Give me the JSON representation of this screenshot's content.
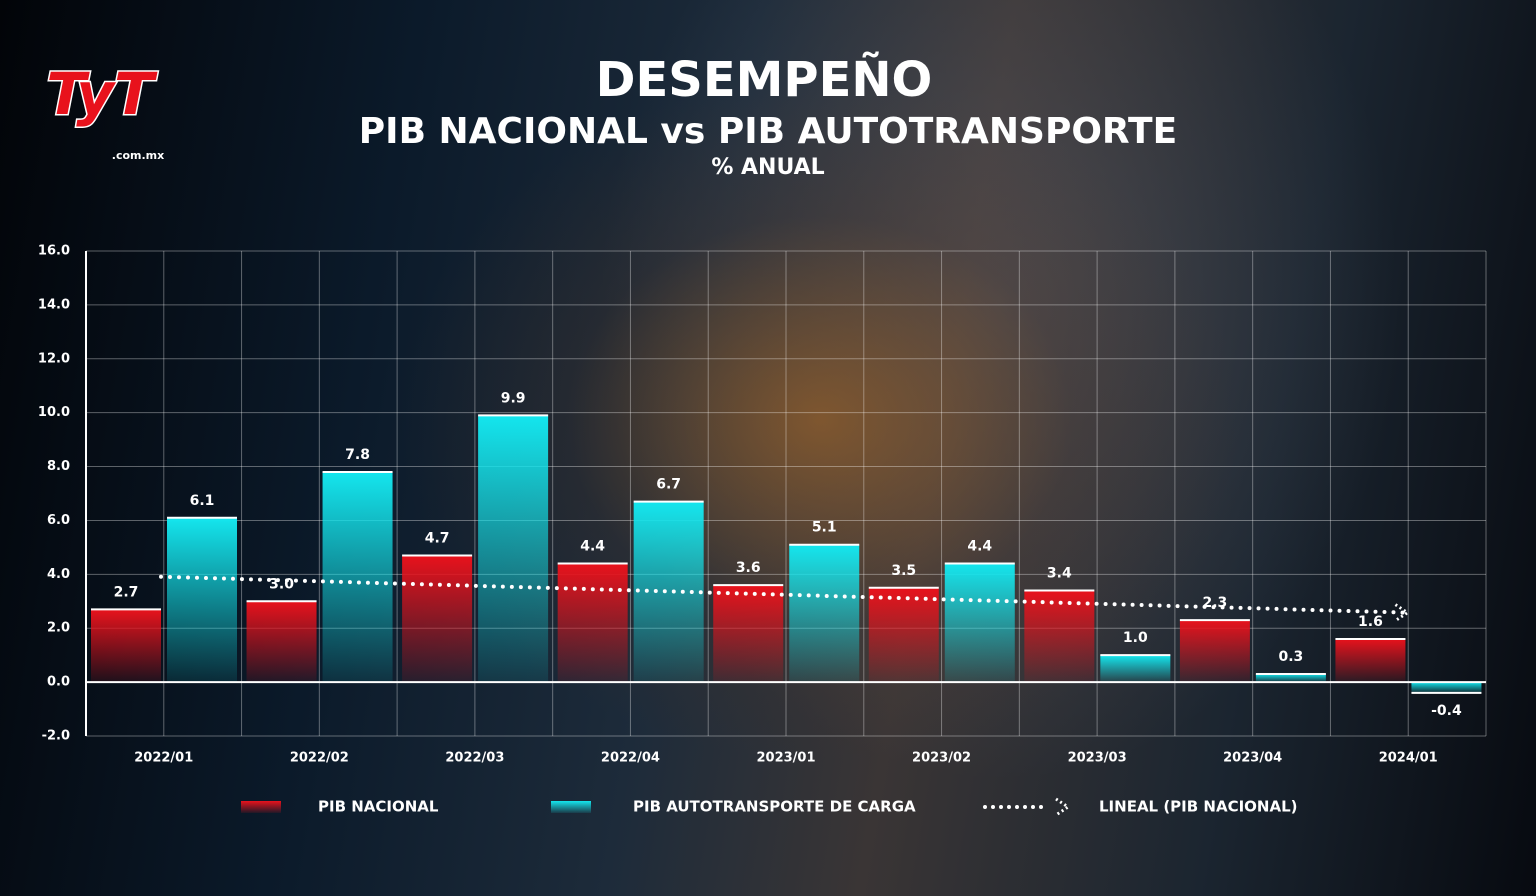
{
  "logo": {
    "text": "TyT",
    "domain": ".com.mx"
  },
  "chart_data": {
    "type": "bar",
    "title": "DESEMPEÑO",
    "subtitle": "PIB NACIONAL vs PIB AUTOTRANSPORTE",
    "y_label": "% ANUAL",
    "categories": [
      "2022/01",
      "2022/02",
      "2022/03",
      "2022/04",
      "2023/01",
      "2023/02",
      "2023/03",
      "2023/04",
      "2024/01"
    ],
    "series": [
      {
        "name": "PIB NACIONAL",
        "color": "#e8121c",
        "values": [
          2.7,
          3.0,
          4.7,
          4.4,
          3.6,
          3.5,
          3.4,
          2.3,
          1.6
        ],
        "value_labels": [
          "2.7",
          "3.0",
          "4.7",
          "4.4",
          "3.6",
          "3.5",
          "3.4",
          "2.3",
          "1.6"
        ],
        "trendline": {
          "name": "LINEAL (PIB NACIONAL)",
          "type": "linear",
          "color": "#ffffff"
        }
      },
      {
        "name": "PIB AUTOTRANSPORTE DE CARGA",
        "color": "#14e6ee",
        "values": [
          6.1,
          7.8,
          9.9,
          6.7,
          5.1,
          4.4,
          1.0,
          0.3,
          -0.4
        ],
        "value_labels": [
          "6.1",
          "7.8",
          "9.9",
          "6.7",
          "5.1",
          "4.4",
          "1.0",
          "0.3",
          "-0.4"
        ]
      }
    ],
    "ylim": [
      -2,
      16
    ],
    "yticks": [
      {
        "value": -2,
        "label": "-2.0"
      },
      {
        "value": 0,
        "label": "0.0"
      },
      {
        "value": 2,
        "label": "2.0"
      },
      {
        "value": 4,
        "label": "4.0"
      },
      {
        "value": 6,
        "label": "6.0"
      },
      {
        "value": 8,
        "label": "8.0"
      },
      {
        "value": 10,
        "label": "10.0"
      },
      {
        "value": 12,
        "label": "12.0"
      },
      {
        "value": 14,
        "label": "14.0"
      },
      {
        "value": 16,
        "label": "16.0"
      }
    ],
    "grid": true
  }
}
